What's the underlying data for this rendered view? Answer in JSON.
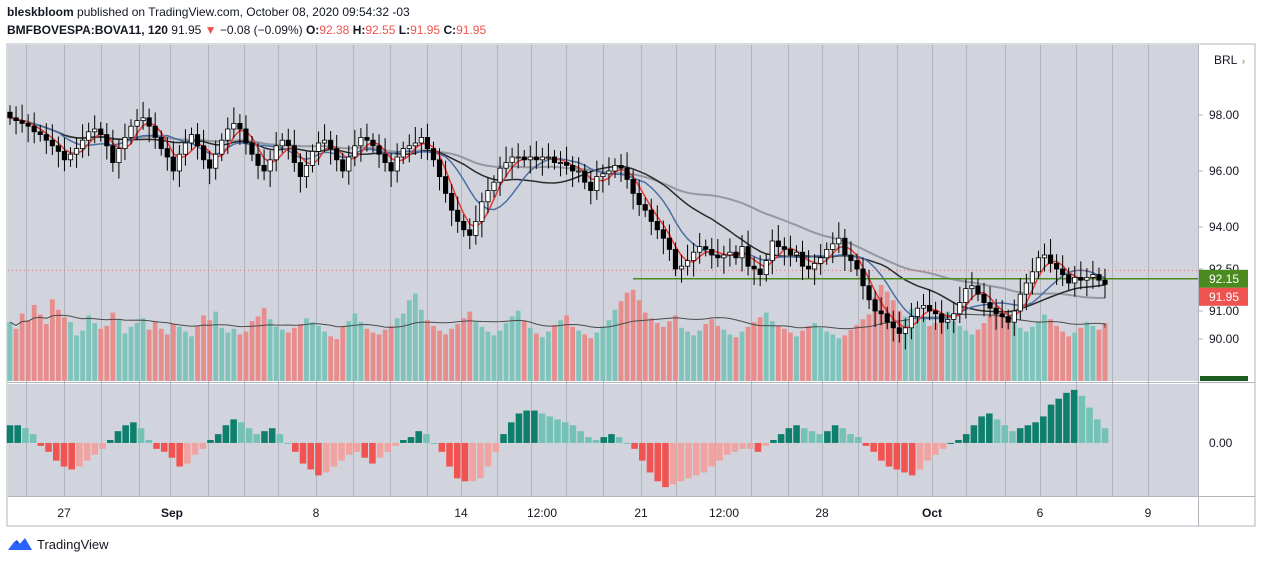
{
  "header": {
    "author": "bleskbloom",
    "published_text": "published on TradingView.com, October 08, 2020 09:54:32 -03",
    "symbol": "BMFBOVESPA:BOVA11, 120",
    "last": "91.95",
    "change_arrow": "▼",
    "change": "−0.08 (−0.09%)",
    "o_label": "O:",
    "o_value": "92.38",
    "h_label": "H:",
    "h_value": "92.55",
    "l_label": "L:",
    "l_value": "91.95",
    "c_label": "C:",
    "c_value": "91.95"
  },
  "brand": {
    "name": "TradingView",
    "icon": "tradingview-logo-icon"
  },
  "colors": {
    "panel_bg": "#d1d4dc",
    "grid": "#b2b5be",
    "bull": "#ffffff",
    "bear": "#000000",
    "ma_fast": "#e53935",
    "ma_mid": "#4a6fa5",
    "ma_slow": "#2a2a2a",
    "ma_long": "#9598a1",
    "support": "#4b8a1e",
    "vol_up": "#7fc4bb",
    "vol_down": "#e98c8c",
    "hist_up_strong": "#0e7f6c",
    "hist_up_weak": "#73c2b5",
    "hist_down_strong": "#f05350",
    "hist_down_weak": "#f1a3a1"
  },
  "chart_data": [
    {
      "type": "candlestick",
      "currency_label": "BRL",
      "y_axis": {
        "ticks": [
          "98.00",
          "96.00",
          "94.00",
          "92.50",
          "91.00",
          "90.00"
        ],
        "range": [
          88.5,
          100.5
        ]
      },
      "x_axis": {
        "ticks": [
          "27",
          "Sep",
          "8",
          "14",
          "12:00",
          "21",
          "12:00",
          "28",
          "Oct",
          "6",
          "9"
        ]
      },
      "price_labels": {
        "support": "92.15",
        "last": "91.95"
      },
      "support_level": 92.15,
      "last_price": 91.95,
      "closes": [
        97.9,
        97.8,
        97.7,
        97.6,
        97.4,
        97.3,
        97.1,
        96.9,
        96.7,
        96.4,
        96.6,
        96.8,
        97.1,
        97.4,
        97.5,
        97.3,
        96.9,
        96.3,
        96.8,
        97.2,
        97.6,
        97.8,
        97.9,
        97.6,
        97.2,
        96.8,
        96.5,
        96.0,
        96.6,
        97.0,
        97.3,
        96.9,
        96.4,
        96.1,
        96.6,
        97.1,
        97.5,
        97.7,
        97.5,
        97.0,
        96.6,
        96.2,
        96.0,
        96.4,
        96.9,
        97.1,
        96.9,
        96.3,
        95.8,
        96.2,
        96.7,
        97.0,
        97.1,
        96.8,
        96.4,
        96.0,
        96.5,
        96.9,
        97.2,
        97.1,
        96.9,
        96.6,
        96.3,
        96.0,
        96.5,
        96.8,
        96.9,
        97.0,
        97.2,
        96.8,
        96.4,
        95.8,
        95.2,
        94.6,
        94.2,
        93.9,
        93.7,
        94.2,
        94.9,
        95.3,
        95.6,
        96.1,
        96.3,
        96.5,
        96.5,
        96.4,
        96.5,
        96.4,
        96.5,
        96.5,
        96.3,
        96.3,
        96.2,
        96.0,
        96.0,
        95.6,
        95.3,
        95.8,
        95.9,
        96.0,
        96.2,
        96.1,
        95.7,
        95.2,
        94.8,
        94.6,
        94.2,
        93.9,
        93.6,
        93.2,
        92.5,
        92.6,
        92.8,
        93.1,
        93.3,
        93.2,
        93.0,
        92.9,
        93.0,
        93.1,
        92.9,
        93.3,
        92.6,
        92.5,
        92.3,
        92.8,
        93.5,
        93.3,
        93.2,
        93.0,
        93.1,
        92.6,
        92.5,
        92.7,
        92.9,
        93.2,
        93.4,
        93.6,
        93.0,
        92.8,
        92.5,
        91.9,
        91.4,
        91.0,
        90.9,
        90.6,
        90.4,
        90.2,
        90.4,
        90.8,
        91.1,
        91.2,
        91.0,
        90.9,
        90.6,
        90.7,
        90.9,
        91.3,
        91.8,
        91.9,
        91.6,
        91.3,
        91.1,
        90.9,
        90.8,
        90.6,
        91.0,
        91.6,
        92.0,
        92.4,
        92.9,
        93.0,
        92.7,
        92.5,
        92.3,
        92.0,
        92.2,
        92.1,
        92.2,
        92.3,
        92.1,
        91.95
      ]
    },
    {
      "type": "bar",
      "series": [
        {
          "name": "",
          "values": [
            62,
            55,
            71,
            64,
            80,
            70,
            60,
            86,
            75,
            67,
            62,
            48,
            53,
            69,
            61,
            55,
            58,
            72,
            64,
            50,
            57,
            61,
            66,
            54,
            63,
            55,
            49,
            60,
            57,
            52,
            47,
            58,
            69,
            64,
            73,
            56,
            51,
            55,
            49,
            52,
            63,
            68,
            77,
            65,
            57,
            54,
            51,
            56,
            60,
            66,
            62,
            58,
            52,
            47,
            44,
            58,
            63,
            71,
            62,
            55,
            51,
            49,
            54,
            58,
            66,
            71,
            85,
            92,
            75,
            64,
            58,
            53,
            49,
            55,
            60,
            66,
            73,
            62,
            57,
            52,
            48,
            53,
            61,
            68,
            74,
            63,
            56,
            50,
            46,
            52,
            59,
            64,
            69,
            57,
            53,
            49,
            45,
            51,
            58,
            64,
            75,
            84,
            93,
            96,
            85,
            72,
            66,
            61,
            57,
            63,
            69,
            56,
            52,
            48,
            53,
            60,
            65,
            58,
            54,
            49,
            46,
            52,
            57,
            62,
            67,
            72,
            63,
            58,
            55,
            51,
            47,
            53,
            58,
            61,
            56,
            52,
            49,
            45,
            48,
            54,
            59,
            65,
            70,
            88,
            101,
            94,
            85,
            74,
            68,
            76,
            72,
            66,
            58,
            61,
            67,
            73,
            63,
            58,
            53,
            49,
            54,
            61,
            70,
            79,
            74,
            66,
            61,
            56,
            52,
            57,
            63,
            70,
            65,
            58,
            52,
            47,
            51,
            56,
            62,
            58,
            54,
            50,
            46,
            52,
            57,
            61,
            58,
            54
          ]
        }
      ]
    },
    {
      "type": "bar",
      "y_axis": {
        "ticks": [
          "0.00"
        ]
      },
      "values": [
        0.6,
        0.6,
        0.5,
        0.3,
        -0.1,
        -0.3,
        -0.6,
        -0.8,
        -0.9,
        -0.8,
        -0.6,
        -0.4,
        -0.2,
        0.1,
        0.4,
        0.6,
        0.7,
        0.5,
        0.1,
        -0.2,
        -0.3,
        -0.5,
        -0.8,
        -0.7,
        -0.4,
        -0.2,
        0.1,
        0.3,
        0.6,
        0.8,
        0.7,
        0.5,
        0.3,
        0.4,
        0.5,
        0.3,
        0.0,
        -0.3,
        -0.7,
        -0.9,
        -1.1,
        -1.0,
        -0.8,
        -0.6,
        -0.4,
        -0.3,
        -0.5,
        -0.7,
        -0.5,
        -0.3,
        -0.1,
        0.1,
        0.2,
        0.4,
        0.3,
        0.0,
        -0.3,
        -0.8,
        -1.2,
        -1.3,
        -1.3,
        -1.2,
        -0.8,
        -0.3,
        0.3,
        0.7,
        1.0,
        1.1,
        1.1,
        1.0,
        0.9,
        0.8,
        0.7,
        0.6,
        0.4,
        0.2,
        0.1,
        0.2,
        0.3,
        0.2,
        0.0,
        -0.2,
        -0.6,
        -1.0,
        -1.3,
        -1.5,
        -1.4,
        -1.3,
        -1.2,
        -1.1,
        -1.0,
        -0.8,
        -0.6,
        -0.4,
        -0.3,
        -0.2,
        -0.2,
        -0.3,
        -0.1,
        0.1,
        0.3,
        0.5,
        0.6,
        0.5,
        0.4,
        0.3,
        0.4,
        0.6,
        0.5,
        0.3,
        0.2,
        -0.1,
        -0.3,
        -0.6,
        -0.8,
        -0.9,
        -1.0,
        -1.1,
        -0.9,
        -0.6,
        -0.4,
        -0.2,
        0.0,
        0.1,
        0.3,
        0.6,
        0.9,
        1.0,
        0.8,
        0.6,
        0.4,
        0.5,
        0.6,
        0.7,
        0.9,
        1.3,
        1.5,
        1.7,
        1.8,
        1.6,
        1.2,
        0.8,
        0.5
      ]
    }
  ]
}
